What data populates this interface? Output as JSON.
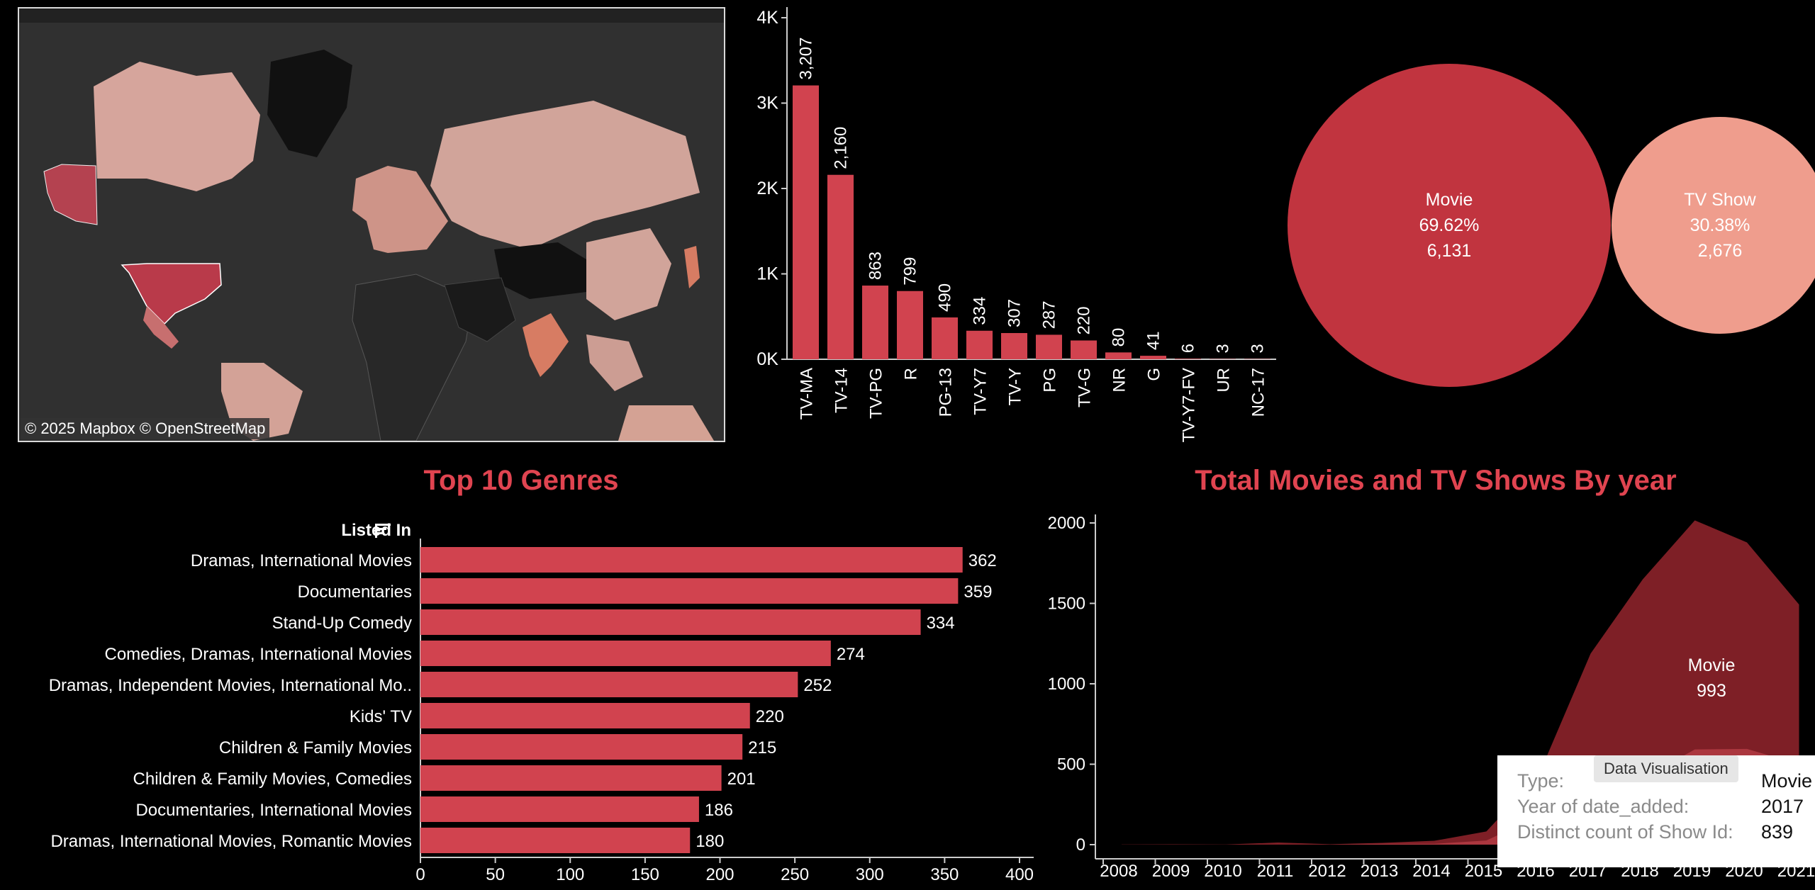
{
  "map": {
    "attribution": "© 2025 Mapbox  © OpenStreetMap"
  },
  "colors": {
    "accent": "#d1434f",
    "movie": "#c1343f",
    "tv_show": "#ef9d8d",
    "title": "#e04450",
    "area_movie": "#7e1f26",
    "area_tv": "#b03a42"
  },
  "chart_data": [
    {
      "id": "ratings",
      "type": "bar",
      "categories": [
        "TV-MA",
        "TV-14",
        "TV-PG",
        "R",
        "PG-13",
        "TV-Y7",
        "TV-Y",
        "PG",
        "TV-G",
        "NR",
        "G",
        "TV-Y7-FV",
        "UR",
        "NC-17"
      ],
      "values": [
        3207,
        2160,
        863,
        799,
        490,
        334,
        307,
        287,
        220,
        80,
        41,
        6,
        3,
        3
      ],
      "data_labels": [
        "3,207",
        "2,160",
        "863",
        "799",
        "490",
        "334",
        "307",
        "287",
        "220",
        "80",
        "41",
        "6",
        "3",
        "3"
      ],
      "yticks": [
        "0K",
        "1K",
        "2K",
        "3K",
        "4K"
      ],
      "ylim": [
        0,
        4000
      ]
    },
    {
      "id": "type-share",
      "type": "pie",
      "slices": [
        {
          "label": "Movie",
          "percent": "69.62%",
          "count": "6,131",
          "value": 6131
        },
        {
          "label": "TV Show",
          "percent": "30.38%",
          "count": "2,676",
          "value": 2676
        }
      ]
    },
    {
      "id": "genres",
      "type": "bar",
      "title": "Top 10 Genres",
      "ylabel": "Listed In",
      "categories": [
        "Dramas, International Movies",
        "Documentaries",
        "Stand-Up Comedy",
        "Comedies, Dramas, International Movies",
        "Dramas, Independent Movies, International Mo..",
        "Kids' TV",
        "Children & Family Movies",
        "Children & Family Movies, Comedies",
        "Documentaries, International Movies",
        "Dramas, International Movies, Romantic Movies"
      ],
      "values": [
        362,
        359,
        334,
        274,
        252,
        220,
        215,
        201,
        186,
        180
      ],
      "xticks": [
        "0",
        "50",
        "100",
        "150",
        "200",
        "250",
        "300",
        "350",
        "400"
      ],
      "xlim": [
        0,
        400
      ]
    },
    {
      "id": "by-year",
      "type": "area",
      "title": "Total Movies and TV Shows By year",
      "x": [
        "2008",
        "2009",
        "2010",
        "2011",
        "2012",
        "2013",
        "2014",
        "2015",
        "2016",
        "2017",
        "2018",
        "2019",
        "2020",
        "2021"
      ],
      "series": [
        {
          "name": "Movie",
          "values": [
            1,
            2,
            1,
            13,
            3,
            6,
            19,
            56,
            253,
            839,
            1237,
            1424,
            1284,
            993
          ]
        },
        {
          "name": "TV Show",
          "values": [
            0,
            0,
            0,
            0,
            0,
            5,
            5,
            26,
            176,
            349,
            412,
            592,
            595,
            500
          ]
        }
      ],
      "annotation": {
        "label": "Movie",
        "value": "993"
      },
      "yticks": [
        "0",
        "500",
        "1000",
        "1500",
        "2000"
      ],
      "ylim": [
        0,
        2100
      ]
    }
  ],
  "tooltip": {
    "header": "Data Visualisation",
    "rows": [
      {
        "key": "Type:",
        "value": "Movie"
      },
      {
        "key": "Year of date_added:",
        "value": "2017"
      },
      {
        "key": "Distinct count of Show Id:",
        "value": "839"
      }
    ]
  }
}
